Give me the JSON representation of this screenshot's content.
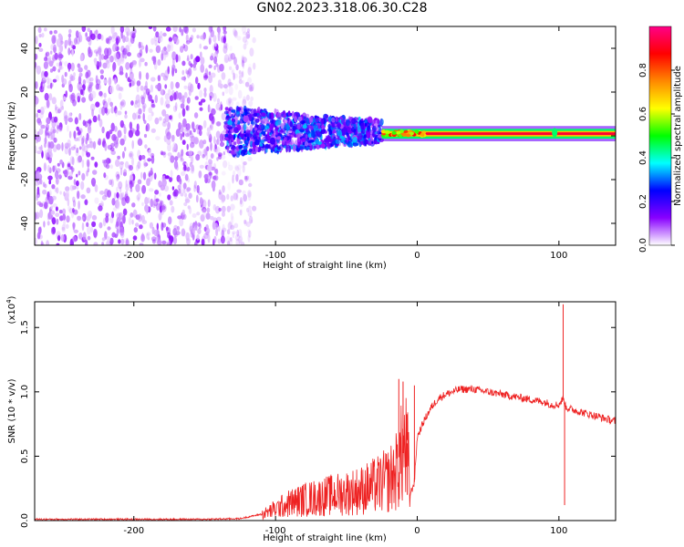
{
  "page": {
    "title": "GN02.2023.318.06.30.C28"
  },
  "chart_data": [
    {
      "type": "heatmap",
      "panel": "spectrogram",
      "xlabel": "Height of straight line (km)",
      "ylabel": "Frequency (Hz)",
      "xlim": [
        -270,
        140
      ],
      "ylim": [
        -50,
        50
      ],
      "x_ticks": [
        -200,
        -100,
        0,
        100
      ],
      "x_tick_labels": [
        "-200",
        "-100",
        "0",
        "100"
      ],
      "y_ticks": [
        -40,
        -20,
        0,
        20,
        40
      ],
      "y_tick_labels": [
        "-40",
        "-20",
        "0",
        "20",
        "40"
      ],
      "colorbar": {
        "label": "Normalized spectral amplitude",
        "range": [
          0,
          1
        ],
        "ticks": [
          0.0,
          0.2,
          0.4,
          0.6,
          0.8
        ],
        "tick_labels": [
          "0.0",
          "0.2",
          "0.4",
          "0.6",
          "0.8"
        ],
        "colors": [
          "#ffffff",
          "#8800ff",
          "#0000ff",
          "#00ffff",
          "#00ff00",
          "#ffff00",
          "#ff8800",
          "#ff0000",
          "#ff0088"
        ]
      },
      "regions": [
        {
          "x_range": [
            -270,
            -135
          ],
          "freq_range": [
            -50,
            50
          ],
          "amplitude": [
            0.02,
            0.12
          ],
          "description_color": "#8800ff"
        },
        {
          "x_range": [
            -135,
            -25
          ],
          "freq_range": [
            -10,
            12
          ],
          "amplitude": [
            0.05,
            0.35
          ]
        },
        {
          "x_range": [
            -25,
            140
          ],
          "freq_range": [
            -1,
            3
          ],
          "amplitude": [
            0.6,
            1.0
          ]
        }
      ],
      "grid": false
    },
    {
      "type": "line",
      "panel": "snr",
      "xlabel": "Height of straight line (km)",
      "ylabel": "SNR (10 * v/v)",
      "y_multiplier_label": "(x10",
      "y_multiplier_exp": "4",
      "y_multiplier_close": ")",
      "xlim": [
        -270,
        140
      ],
      "ylim": [
        0,
        1.7
      ],
      "x_ticks": [
        -200,
        -100,
        0,
        100
      ],
      "x_tick_labels": [
        "-200",
        "-100",
        "0",
        "100"
      ],
      "y_ticks": [
        0.0,
        0.5,
        1.0,
        1.5
      ],
      "y_tick_labels": [
        "0.0",
        "0.5",
        "1.0",
        "1.5"
      ],
      "series_color": "#ee2222",
      "x": [
        -270,
        -200,
        -150,
        -125,
        -110,
        -100,
        -90,
        -80,
        -70,
        -60,
        -50,
        -40,
        -30,
        -20,
        -15,
        -10,
        -7,
        -5,
        -2,
        0,
        5,
        10,
        15,
        20,
        25,
        30,
        40,
        50,
        60,
        70,
        80,
        90,
        95,
        100,
        103,
        105,
        110,
        120,
        130,
        140
      ],
      "y": [
        0.01,
        0.01,
        0.01,
        0.015,
        0.05,
        0.1,
        0.15,
        0.18,
        0.2,
        0.22,
        0.24,
        0.26,
        0.3,
        0.35,
        0.42,
        0.6,
        0.6,
        0.2,
        0.3,
        0.65,
        0.78,
        0.88,
        0.95,
        0.98,
        1.0,
        1.02,
        1.02,
        1.0,
        0.98,
        0.96,
        0.94,
        0.92,
        0.9,
        0.9,
        0.95,
        0.88,
        0.86,
        0.83,
        0.8,
        0.77
      ],
      "spikes": [
        {
          "x": -13,
          "y": 1.1
        },
        {
          "x": -10,
          "y": 1.08
        },
        {
          "x": -7,
          "y": 0.2
        },
        {
          "x": -2,
          "y": 1.05
        },
        {
          "x": 103,
          "y": 1.68
        },
        {
          "x": 104,
          "y": 0.12
        }
      ],
      "grid": false
    }
  ]
}
